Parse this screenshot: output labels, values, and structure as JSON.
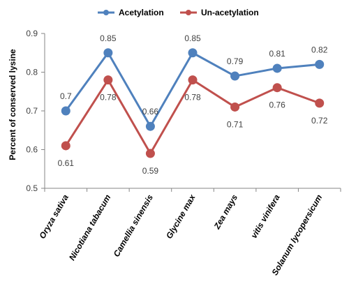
{
  "chart_data": {
    "type": "line",
    "categories": [
      "Oryza sativa",
      "Nicotiana tabacum",
      "Camellia sinensis",
      "Glycine max",
      "Zea mays",
      "vitis vinifera",
      "Solanum lycopersicum"
    ],
    "series": [
      {
        "name": "Acetylation",
        "color": "#4f81bd",
        "values": [
          0.7,
          0.85,
          0.66,
          0.85,
          0.79,
          0.81,
          0.82
        ],
        "labels": [
          "0.7",
          "0.85",
          "0.66",
          "0.85",
          "0.79",
          "0.81",
          "0.82"
        ],
        "label_position": "above"
      },
      {
        "name": "Un-acetylation",
        "color": "#c0504d",
        "values": [
          0.61,
          0.78,
          0.59,
          0.78,
          0.71,
          0.76,
          0.72
        ],
        "labels": [
          "0.61",
          "0.78",
          "0.59",
          "0.78",
          "0.71",
          "0.76",
          "0.72"
        ],
        "label_position": "below"
      }
    ],
    "title": "",
    "xlabel": "",
    "ylabel": "Percent of conserved lysine",
    "ylim": [
      0.5,
      0.9
    ],
    "yticks": [
      "0.5",
      "0.6",
      "0.7",
      "0.8",
      "0.9"
    ],
    "grid": false,
    "legend": "top-center"
  }
}
